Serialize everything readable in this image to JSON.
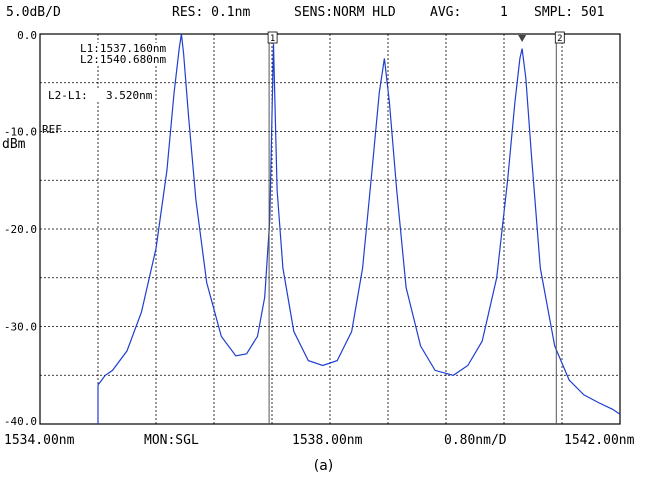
{
  "header": {
    "scale": "5.0dB/D",
    "resolution": "RES: 0.1nm",
    "sensitivity": "SENS:NORM HLD",
    "avg_label": "AVG:",
    "avg_value": "1",
    "samples": "SMPL: 501"
  },
  "markers": {
    "l1": "L1:1537.160nm",
    "l2": "L2:1540.680nm",
    "delta_label": "L2-L1:",
    "delta_value": "3.520nm",
    "marker1_tag": "1",
    "marker2_tag": "2"
  },
  "ref_label": "REF",
  "footer": {
    "start": "1534.00nm",
    "mode": "MON:SGL",
    "center": "1538.00nm",
    "span_per_div": "0.80nm/D",
    "stop": "1542.00nm"
  },
  "caption": "(a)",
  "chart_data": {
    "type": "line",
    "ylabel": "dBm",
    "xlim": [
      1534.0,
      1542.0
    ],
    "ylim": [
      -40.0,
      0.0
    ],
    "y_ticks": [
      "0.0",
      "-10.0",
      "-20.0",
      "-30.0",
      "-40.0"
    ],
    "grid": true,
    "series": [
      {
        "color": "#1f3fd0",
        "peaks": [
          {
            "x": 1535.95,
            "y": 0.0
          },
          {
            "x": 1537.22,
            "y": -1.0
          },
          {
            "x": 1538.75,
            "y": -2.5
          },
          {
            "x": 1540.65,
            "y": -1.5
          }
        ],
        "x": [
          1534.8,
          1534.9,
          1535.0,
          1535.2,
          1535.4,
          1535.6,
          1535.75,
          1535.85,
          1535.92,
          1535.95,
          1535.98,
          1536.05,
          1536.15,
          1536.3,
          1536.5,
          1536.7,
          1536.85,
          1537.0,
          1537.1,
          1537.17,
          1537.22,
          1537.27,
          1537.35,
          1537.5,
          1537.7,
          1537.9,
          1538.1,
          1538.3,
          1538.45,
          1538.58,
          1538.68,
          1538.75,
          1538.82,
          1538.92,
          1539.05,
          1539.25,
          1539.45,
          1539.7,
          1539.9,
          1540.1,
          1540.3,
          1540.45,
          1540.55,
          1540.62,
          1540.65,
          1540.7,
          1540.78,
          1540.9,
          1541.1,
          1541.3,
          1541.5,
          1541.7,
          1541.9,
          1542.0
        ],
        "y": [
          -36.0,
          -35.0,
          -34.5,
          -32.5,
          -28.5,
          -22.0,
          -14.0,
          -6.0,
          -1.5,
          0.0,
          -2.0,
          -8.5,
          -17.0,
          -25.5,
          -31.0,
          -33.0,
          -32.8,
          -31.0,
          -27.0,
          -19.0,
          -1.0,
          -16.0,
          -24.0,
          -30.5,
          -33.5,
          -34.0,
          -33.5,
          -30.5,
          -24.0,
          -14.0,
          -6.0,
          -2.5,
          -7.0,
          -16.0,
          -26.0,
          -32.0,
          -34.5,
          -35.0,
          -34.0,
          -31.5,
          -25.0,
          -15.0,
          -7.0,
          -2.5,
          -1.5,
          -4.5,
          -12.5,
          -24.0,
          -32.0,
          -35.5,
          -37.0,
          -37.8,
          -38.5,
          -39.0
        ]
      }
    ]
  }
}
